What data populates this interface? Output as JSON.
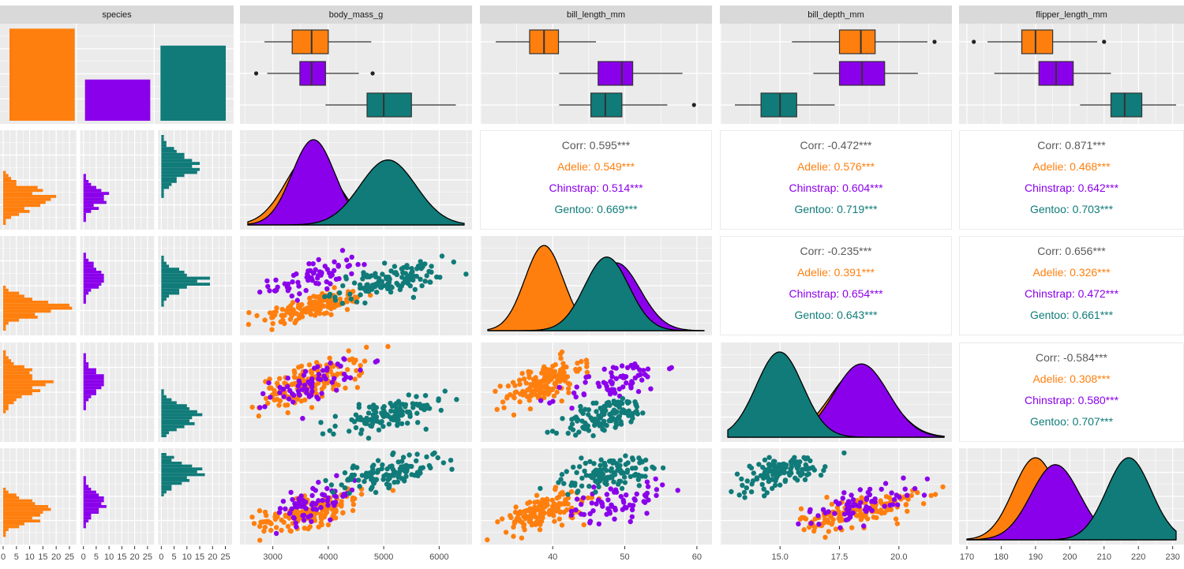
{
  "chart_data": {
    "type": "pairs",
    "title": "",
    "variables": [
      "species",
      "body_mass_g",
      "bill_length_mm",
      "bill_depth_mm",
      "flipper_length_mm"
    ],
    "species": [
      {
        "name": "Adelie",
        "color": "#FF7F0E",
        "count": 152
      },
      {
        "name": "Chinstrap",
        "color": "#8B00EB",
        "count": 68
      },
      {
        "name": "Gentoo",
        "color": "#107B79",
        "count": 124
      }
    ],
    "axes": {
      "species": {
        "ticks": [
          "0",
          "5",
          "10",
          "15",
          "20",
          "25"
        ],
        "range": [
          0,
          27
        ]
      },
      "body_mass_g": {
        "range": [
          2550,
          6450
        ],
        "ticks": [
          3000,
          4000,
          5000,
          6000
        ],
        "tick_labels": [
          "3000",
          "4000",
          "5000",
          "6000"
        ]
      },
      "bill_length_mm": {
        "range": [
          31,
          61
        ],
        "ticks": [
          40,
          50,
          60
        ],
        "tick_labels": [
          "40",
          "50",
          "60"
        ]
      },
      "bill_depth_mm": {
        "range": [
          12.8,
          21.9
        ],
        "ticks": [
          15.0,
          17.5,
          20.0
        ],
        "tick_labels": [
          "15.0",
          "17.5",
          "20.0"
        ]
      },
      "flipper_length_mm": {
        "range": [
          170,
          231
        ],
        "ticks": [
          170,
          180,
          190,
          200,
          210,
          220,
          230
        ],
        "tick_labels": [
          "170",
          "180",
          "190",
          "200",
          "210",
          "220",
          "230"
        ]
      }
    },
    "boxplots": {
      "body_mass_g": [
        {
          "species": "Adelie",
          "min": 2850,
          "q1": 3350,
          "median": 3700,
          "q3": 4000,
          "max": 4775,
          "outliers": []
        },
        {
          "species": "Chinstrap",
          "min": 2900,
          "q1": 3488,
          "median": 3700,
          "q3": 3950,
          "max": 4550,
          "outliers": [
            2700,
            4800
          ]
        },
        {
          "species": "Gentoo",
          "min": 3950,
          "q1": 4700,
          "median": 5000,
          "q3": 5500,
          "max": 6300,
          "outliers": []
        }
      ],
      "bill_length_mm": [
        {
          "species": "Adelie",
          "min": 32.1,
          "q1": 36.8,
          "median": 38.8,
          "q3": 40.8,
          "max": 46.0,
          "outliers": []
        },
        {
          "species": "Chinstrap",
          "min": 40.9,
          "q1": 46.3,
          "median": 49.6,
          "q3": 51.1,
          "max": 58.0,
          "outliers": []
        },
        {
          "species": "Gentoo",
          "min": 40.9,
          "q1": 45.3,
          "median": 47.3,
          "q3": 49.6,
          "max": 55.9,
          "outliers": [
            59.6
          ]
        }
      ],
      "bill_depth_mm": [
        {
          "species": "Adelie",
          "min": 15.5,
          "q1": 17.5,
          "median": 18.4,
          "q3": 19.0,
          "max": 21.2,
          "outliers": [
            21.5
          ]
        },
        {
          "species": "Chinstrap",
          "min": 16.4,
          "q1": 17.5,
          "median": 18.45,
          "q3": 19.4,
          "max": 20.8,
          "outliers": []
        },
        {
          "species": "Gentoo",
          "min": 13.1,
          "q1": 14.2,
          "median": 15.0,
          "q3": 15.7,
          "max": 17.3,
          "outliers": []
        }
      ],
      "flipper_length_mm": [
        {
          "species": "Adelie",
          "min": 176,
          "q1": 186,
          "median": 190,
          "q3": 195,
          "max": 208,
          "outliers": [
            172,
            210
          ]
        },
        {
          "species": "Chinstrap",
          "min": 178,
          "q1": 191,
          "median": 196,
          "q3": 201,
          "max": 212,
          "outliers": []
        },
        {
          "species": "Gentoo",
          "min": 203,
          "q1": 212,
          "median": 216,
          "q3": 221,
          "max": 231,
          "outliers": []
        }
      ]
    },
    "correlations": [
      {
        "pair": [
          "bill_length_mm",
          "body_mass_g"
        ],
        "overall": "Corr: 0.595***",
        "Adelie": "Adelie: 0.549***",
        "Chinstrap": "Chinstrap: 0.514***",
        "Gentoo": "Gentoo: 0.669***"
      },
      {
        "pair": [
          "bill_depth_mm",
          "body_mass_g"
        ],
        "overall": "Corr: -0.472***",
        "Adelie": "Adelie: 0.576***",
        "Chinstrap": "Chinstrap: 0.604***",
        "Gentoo": "Gentoo: 0.719***"
      },
      {
        "pair": [
          "flipper_length_mm",
          "body_mass_g"
        ],
        "overall": "Corr: 0.871***",
        "Adelie": "Adelie: 0.468***",
        "Chinstrap": "Chinstrap: 0.642***",
        "Gentoo": "Gentoo: 0.703***"
      },
      {
        "pair": [
          "bill_depth_mm",
          "bill_length_mm"
        ],
        "overall": "Corr: -0.235***",
        "Adelie": "Adelie: 0.391***",
        "Chinstrap": "Chinstrap: 0.654***",
        "Gentoo": "Gentoo: 0.643***"
      },
      {
        "pair": [
          "flipper_length_mm",
          "bill_length_mm"
        ],
        "overall": "Corr: 0.656***",
        "Adelie": "Adelie: 0.326***",
        "Chinstrap": "Chinstrap: 0.472***",
        "Gentoo": "Gentoo: 0.661***"
      },
      {
        "pair": [
          "flipper_length_mm",
          "bill_depth_mm"
        ],
        "overall": "Corr: -0.584***",
        "Adelie": "Adelie: 0.308***",
        "Chinstrap": "Chinstrap: 0.580***",
        "Gentoo": "Gentoo: 0.707***"
      }
    ],
    "distribution_params": {
      "body_mass_g": {
        "Adelie": {
          "mean": 3700,
          "sd": 458
        },
        "Chinstrap": {
          "mean": 3733,
          "sd": 384
        },
        "Gentoo": {
          "mean": 5076,
          "sd": 504
        }
      },
      "bill_length_mm": {
        "Adelie": {
          "mean": 38.8,
          "sd": 2.66
        },
        "Chinstrap": {
          "mean": 48.8,
          "sd": 3.34
        },
        "Gentoo": {
          "mean": 47.5,
          "sd": 3.08
        }
      },
      "bill_depth_mm": {
        "Adelie": {
          "mean": 18.35,
          "sd": 1.22
        },
        "Chinstrap": {
          "mean": 18.42,
          "sd": 1.14
        },
        "Gentoo": {
          "mean": 14.98,
          "sd": 0.98
        }
      },
      "flipper_length_mm": {
        "Adelie": {
          "mean": 190,
          "sd": 6.5
        },
        "Chinstrap": {
          "mean": 195.8,
          "sd": 7.1
        },
        "Gentoo": {
          "mean": 217.2,
          "sd": 6.5
        }
      }
    },
    "grid": true,
    "legend": "none"
  }
}
